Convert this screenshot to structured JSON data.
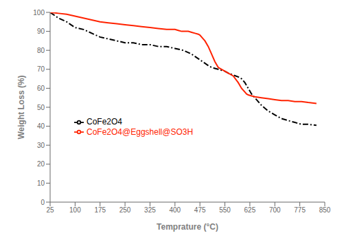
{
  "chart_data": {
    "type": "line",
    "title": "",
    "xlabel": "Temprature (°C)",
    "ylabel": "Weight Loss (%)",
    "xlim": [
      25,
      850
    ],
    "ylim": [
      0,
      100
    ],
    "xticks": [
      25,
      100,
      175,
      250,
      325,
      400,
      475,
      550,
      625,
      700,
      775,
      850
    ],
    "yticks": [
      0,
      10,
      20,
      30,
      40,
      50,
      60,
      70,
      80,
      90,
      100
    ],
    "grid": false,
    "legend": "left",
    "series": [
      {
        "name": "CoFe2O4",
        "color": "black",
        "line_style": "dashdot",
        "x": [
          25,
          50,
          75,
          100,
          125,
          150,
          175,
          200,
          225,
          250,
          275,
          300,
          325,
          350,
          375,
          400,
          425,
          450,
          475,
          500,
          510,
          520,
          530,
          540,
          550,
          560,
          575,
          590,
          600,
          610,
          620,
          630,
          640,
          660,
          680,
          700,
          720,
          740,
          760,
          780,
          800,
          825
        ],
        "values": [
          100,
          97,
          95,
          92,
          91,
          89,
          87,
          86,
          85,
          84,
          84,
          83,
          83,
          82,
          82,
          81,
          80,
          78,
          75,
          72,
          71,
          70.5,
          70,
          69.5,
          69,
          68,
          67,
          66,
          65,
          63,
          60,
          57,
          55,
          51,
          48,
          46,
          44,
          43,
          42,
          41,
          41,
          40.5
        ]
      },
      {
        "name": "CoFe2O4@Eggshell@SO3H",
        "color": "#FF2200",
        "line_style": "solid",
        "x": [
          25,
          50,
          75,
          100,
          125,
          150,
          175,
          200,
          225,
          250,
          275,
          300,
          325,
          350,
          375,
          400,
          410,
          420,
          430,
          440,
          450,
          460,
          470,
          475,
          480,
          490,
          500,
          510,
          520,
          530,
          540,
          550,
          560,
          575,
          590,
          600,
          610,
          615,
          620,
          630,
          640,
          660,
          680,
          700,
          720,
          740,
          760,
          780,
          800,
          825
        ],
        "values": [
          100,
          99.5,
          99,
          98,
          97,
          96,
          95,
          94.5,
          94,
          93.5,
          93,
          92.5,
          92,
          91.5,
          91,
          91,
          90.5,
          90,
          90,
          90,
          89.5,
          89,
          88.5,
          88,
          87,
          85,
          82,
          78,
          74,
          71,
          70,
          69,
          68,
          66.5,
          63,
          60,
          58,
          57,
          56.5,
          56,
          55.5,
          55,
          54.5,
          54,
          53.5,
          53.5,
          53,
          53,
          52.5,
          52
        ]
      }
    ]
  }
}
